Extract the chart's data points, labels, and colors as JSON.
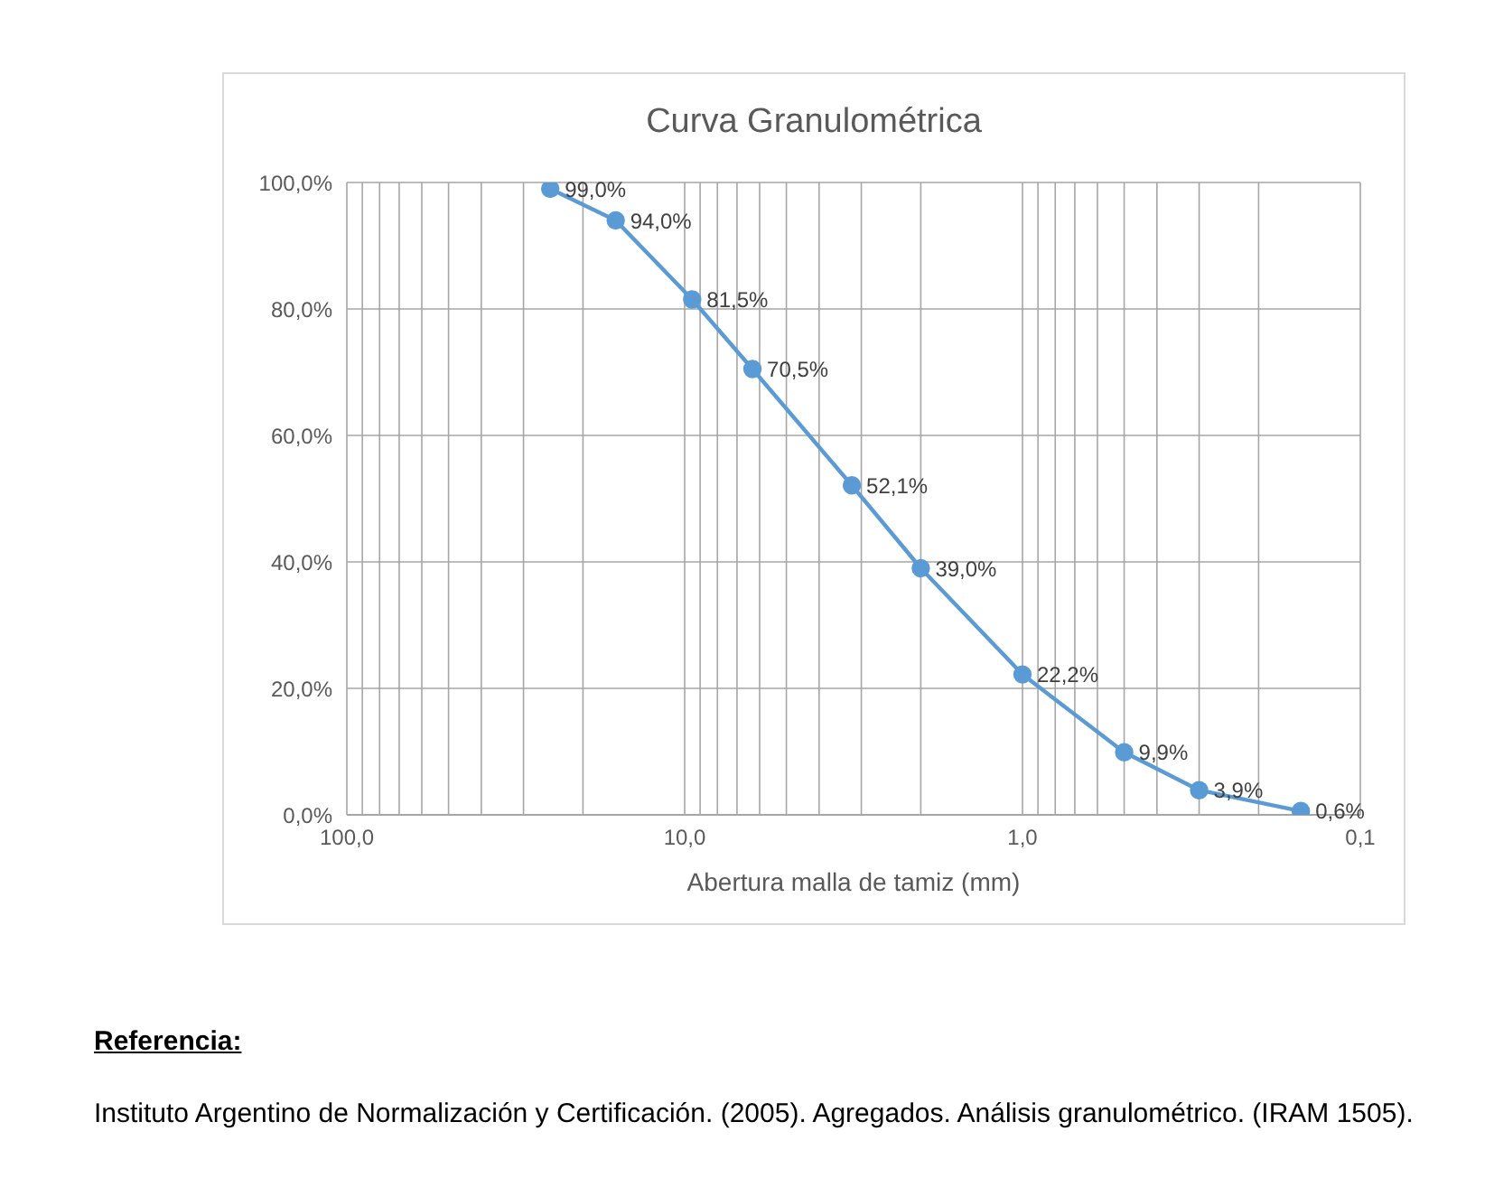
{
  "chart_data": {
    "type": "line",
    "title": "Curva Granulométrica",
    "xlabel": "Abertura malla de tamiz (mm)",
    "x": [
      25,
      16,
      9.5,
      6.3,
      3.2,
      2,
      1,
      0.5,
      0.3,
      0.15
    ],
    "series": [
      {
        "color": "#5b9bd5",
        "values": [
          99.0,
          94.0,
          81.5,
          70.5,
          52.1,
          39.0,
          22.2,
          9.9,
          3.9,
          0.6
        ],
        "value_labels": [
          "99,0%",
          "94,0%",
          "81,5%",
          "70,5%",
          "52,1%",
          "39,0%",
          "22,2%",
          "9,9%",
          "3,9%",
          "0,6%"
        ]
      }
    ],
    "log": "x",
    "xlim": [
      100,
      0.1
    ],
    "xticks": [
      {
        "value": 100,
        "label": "100,0"
      },
      {
        "value": 90,
        "label": null
      },
      {
        "value": 80,
        "label": null
      },
      {
        "value": 70,
        "label": null
      },
      {
        "value": 60,
        "label": null
      },
      {
        "value": 50,
        "label": null
      },
      {
        "value": 40,
        "label": null
      },
      {
        "value": 30,
        "label": null
      },
      {
        "value": 20,
        "label": null
      },
      {
        "value": 10,
        "label": "10,0"
      },
      {
        "value": 9,
        "label": null
      },
      {
        "value": 8,
        "label": null
      },
      {
        "value": 7,
        "label": null
      },
      {
        "value": 6,
        "label": null
      },
      {
        "value": 5,
        "label": null
      },
      {
        "value": 4,
        "label": null
      },
      {
        "value": 3,
        "label": null
      },
      {
        "value": 2,
        "label": null
      },
      {
        "value": 1,
        "label": "1,0"
      },
      {
        "value": 0.9,
        "label": null
      },
      {
        "value": 0.8,
        "label": null
      },
      {
        "value": 0.7,
        "label": null
      },
      {
        "value": 0.6,
        "label": null
      },
      {
        "value": 0.5,
        "label": null
      },
      {
        "value": 0.4,
        "label": null
      },
      {
        "value": 0.3,
        "label": null
      },
      {
        "value": 0.2,
        "label": null
      },
      {
        "value": 0.1,
        "label": "0,1"
      }
    ],
    "ylim": [
      0,
      100
    ],
    "yticks": [
      {
        "value": 0,
        "label": "0,0%"
      },
      {
        "value": 20,
        "label": "20,0%"
      },
      {
        "value": 40,
        "label": "40,0%"
      },
      {
        "value": 60,
        "label": "60,0%"
      },
      {
        "value": 80,
        "label": "80,0%"
      },
      {
        "value": 100,
        "label": "100,0%"
      }
    ],
    "grid": true,
    "marker": "circle",
    "line_style": "solid",
    "annotations": [
      "Referencia:",
      "Instituto Argentino de Normalización y Certificación. (2005). Agregados. Análisis granulométrico. (IRAM 1505)."
    ]
  }
}
